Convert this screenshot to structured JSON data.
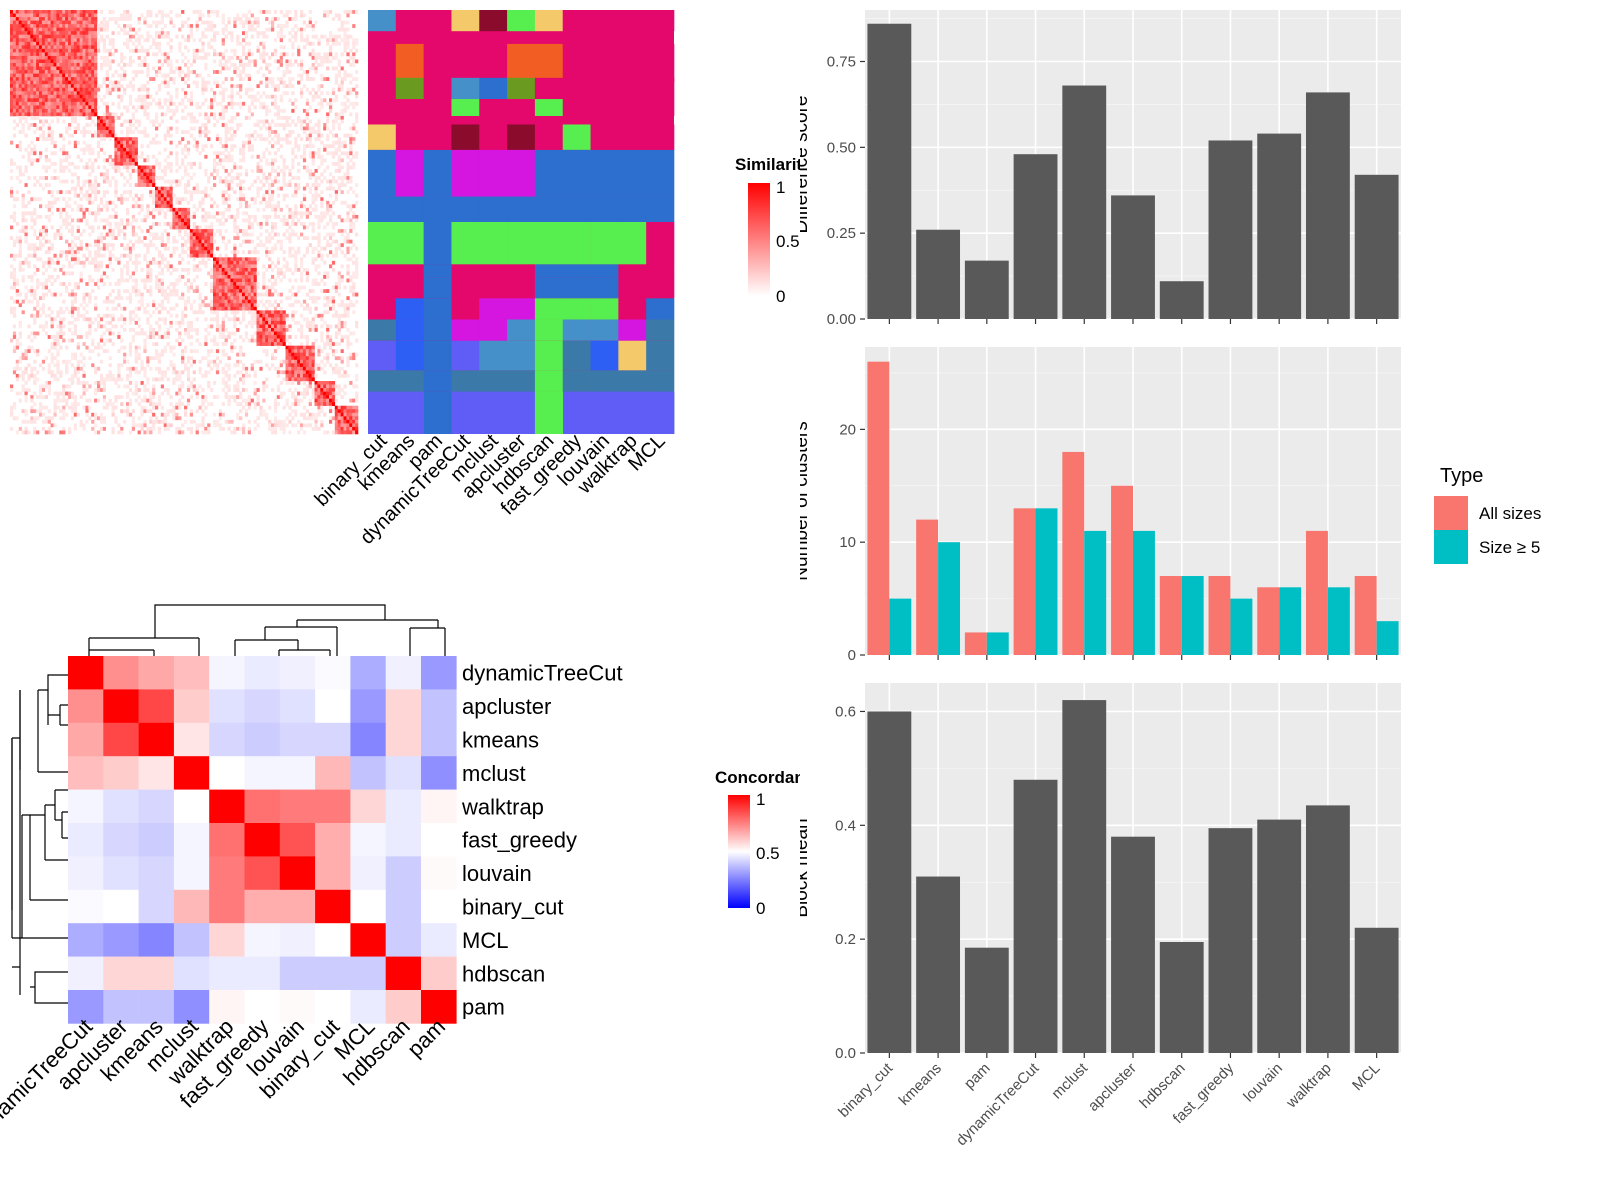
{
  "methods": [
    "binary_cut",
    "kmeans",
    "pam",
    "dynamicTreeCut",
    "mclust",
    "apcluster",
    "hdbscan",
    "fast_greedy",
    "louvain",
    "walktrap",
    "MCL"
  ],
  "similarity_legend": {
    "title": "Similarity",
    "ticks": [
      "1",
      "0.5",
      "0"
    ]
  },
  "concordance_legend": {
    "title": "Concordance",
    "ticks": [
      "1",
      "0.5",
      "0"
    ]
  },
  "chart_data": [
    {
      "type": "heatmap",
      "name": "similarity-matrix",
      "color_low": "#ffffff",
      "color_high": "#ff0000",
      "range": [
        0,
        1
      ]
    },
    {
      "type": "heatmap",
      "name": "cluster-assignments",
      "columns": [
        "binary_cut",
        "kmeans",
        "pam",
        "dynamicTreeCut",
        "mclust",
        "apcluster",
        "hdbscan",
        "fast_greedy",
        "louvain",
        "walktrap",
        "MCL"
      ]
    },
    {
      "type": "heatmap",
      "name": "concordance",
      "rows": [
        "dynamicTreeCut",
        "apcluster",
        "kmeans",
        "mclust",
        "walktrap",
        "fast_greedy",
        "louvain",
        "binary_cut",
        "MCL",
        "hdbscan",
        "pam"
      ],
      "columns": [
        "dynamicTreeCut",
        "apcluster",
        "kmeans",
        "mclust",
        "walktrap",
        "fast_greedy",
        "louvain",
        "binary_cut",
        "MCL",
        "hdbscan",
        "pam"
      ],
      "values": [
        [
          1.0,
          0.72,
          0.67,
          0.63,
          0.48,
          0.46,
          0.47,
          0.49,
          0.34,
          0.47,
          0.3
        ],
        [
          0.72,
          1.0,
          0.86,
          0.6,
          0.44,
          0.42,
          0.44,
          0.5,
          0.3,
          0.58,
          0.38
        ],
        [
          0.67,
          0.86,
          1.0,
          0.55,
          0.42,
          0.4,
          0.42,
          0.42,
          0.26,
          0.58,
          0.38
        ],
        [
          0.63,
          0.6,
          0.55,
          1.0,
          0.5,
          0.48,
          0.48,
          0.64,
          0.38,
          0.44,
          0.28
        ],
        [
          0.48,
          0.44,
          0.42,
          0.5,
          1.0,
          0.78,
          0.76,
          0.76,
          0.58,
          0.46,
          0.52
        ],
        [
          0.46,
          0.42,
          0.4,
          0.48,
          0.78,
          1.0,
          0.84,
          0.66,
          0.48,
          0.46,
          0.5
        ],
        [
          0.47,
          0.44,
          0.42,
          0.48,
          0.76,
          0.84,
          1.0,
          0.66,
          0.47,
          0.4,
          0.51
        ],
        [
          0.49,
          0.5,
          0.42,
          0.64,
          0.76,
          0.66,
          0.66,
          1.0,
          0.5,
          0.4,
          0.5
        ],
        [
          0.34,
          0.3,
          0.26,
          0.38,
          0.58,
          0.48,
          0.47,
          0.5,
          1.0,
          0.4,
          0.46
        ],
        [
          0.47,
          0.58,
          0.58,
          0.44,
          0.46,
          0.46,
          0.4,
          0.4,
          0.4,
          1.0,
          0.6
        ],
        [
          0.3,
          0.38,
          0.38,
          0.28,
          0.52,
          0.5,
          0.51,
          0.5,
          0.46,
          0.6,
          1.0
        ]
      ],
      "range": [
        0,
        1
      ],
      "colors": {
        "low": "#0000ff",
        "mid": "#ffffff",
        "high": "#ff0000"
      }
    },
    {
      "type": "bar",
      "categories": [
        "binary_cut",
        "kmeans",
        "pam",
        "dynamicTreeCut",
        "mclust",
        "apcluster",
        "hdbscan",
        "fast_greedy",
        "louvain",
        "walktrap",
        "MCL"
      ],
      "values": [
        0.86,
        0.26,
        0.17,
        0.48,
        0.68,
        0.36,
        0.11,
        0.52,
        0.54,
        0.66,
        0.42
      ],
      "ylabel": "Difference score",
      "ylim": [
        0,
        0.9
      ],
      "yticks": [
        "0.00",
        "0.25",
        "0.50",
        "0.75"
      ],
      "color": "#595959"
    },
    {
      "type": "bar",
      "categories": [
        "binary_cut",
        "kmeans",
        "pam",
        "dynamicTreeCut",
        "mclust",
        "apcluster",
        "hdbscan",
        "fast_greedy",
        "louvain",
        "walktrap",
        "MCL"
      ],
      "series": [
        {
          "name": "All sizes",
          "values": [
            26,
            12,
            2,
            13,
            18,
            15,
            7,
            7,
            6,
            11,
            7
          ],
          "color": "#F8766D"
        },
        {
          "name": "Size ≥ 5",
          "values": [
            5,
            10,
            2,
            13,
            11,
            11,
            7,
            5,
            6,
            6,
            3
          ],
          "color": "#00BFC4"
        }
      ],
      "ylabel": "Number of clusters",
      "ylim": [
        0,
        27.3
      ],
      "yticks": [
        "0",
        "10",
        "20"
      ],
      "legend": {
        "title": "Type",
        "position": "right"
      }
    },
    {
      "type": "bar",
      "categories": [
        "binary_cut",
        "kmeans",
        "pam",
        "dynamicTreeCut",
        "mclust",
        "apcluster",
        "hdbscan",
        "fast_greedy",
        "louvain",
        "walktrap",
        "MCL"
      ],
      "values": [
        0.6,
        0.31,
        0.185,
        0.48,
        0.62,
        0.38,
        0.195,
        0.395,
        0.41,
        0.435,
        0.22
      ],
      "ylabel": "Block mean",
      "ylim": [
        0,
        0.65
      ],
      "yticks": [
        "0.0",
        "0.2",
        "0.4",
        "0.6"
      ],
      "color": "#595959"
    }
  ]
}
